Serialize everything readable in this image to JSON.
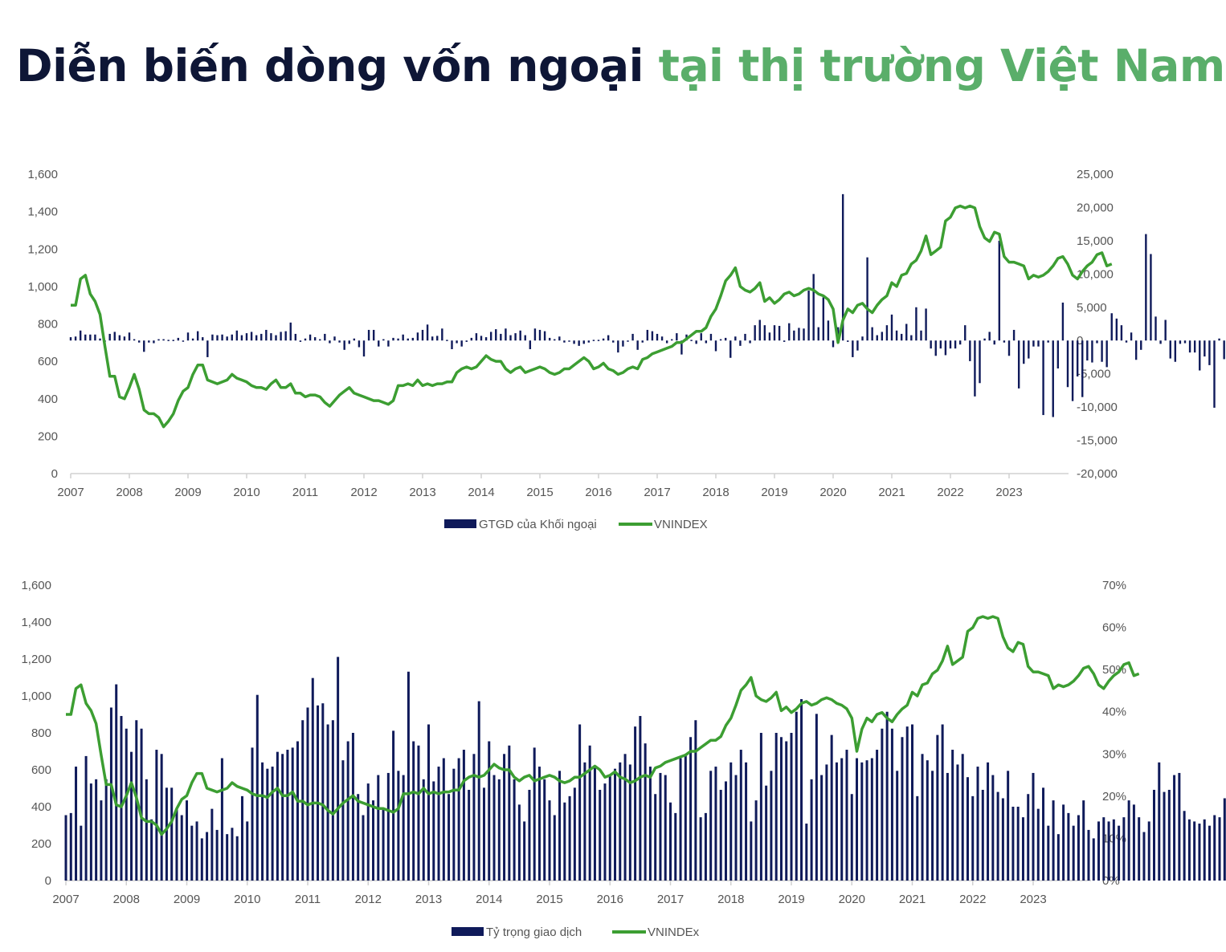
{
  "title": {
    "part1": "Diễn biến dòng vốn ngoại",
    "part2": "tại thị trường Việt Nam",
    "color_dark": "#0e1636",
    "color_green": "#5aae6a"
  },
  "colors": {
    "bar": "#0f1a5a",
    "line": "#3c9e32",
    "axis": "#d0d0d0",
    "tick_text": "#555555"
  },
  "chart_data": [
    {
      "type": "bar+line",
      "title": "",
      "x_ticks": [
        "2007",
        "2008",
        "2009",
        "2010",
        "2011",
        "2012",
        "2013",
        "2014",
        "2015",
        "2016",
        "2017",
        "2018",
        "2019",
        "2020",
        "2021",
        "2022",
        "2023"
      ],
      "left_axis": {
        "label": "VNINDEX",
        "ticks": [
          "0",
          "200",
          "400",
          "600",
          "800",
          "1,000",
          "1,200",
          "1,400",
          "1,600"
        ],
        "ylim": [
          0,
          1600
        ]
      },
      "right_axis": {
        "label": "GTGD của Khối ngoại",
        "ticks": [
          "-20,000",
          "-15,000",
          "-10,000",
          "-5,000",
          "0",
          "5,000",
          "10,000",
          "15,000",
          "20,000",
          "25,000"
        ],
        "ylim": [
          -20000,
          25000
        ]
      },
      "legend": [
        {
          "name": "GTGD của Khối ngoại",
          "type": "bar"
        },
        {
          "name": "VNINDEX",
          "type": "line"
        }
      ],
      "series": [
        {
          "name": "GTGD của Khối ngoại",
          "axis": "right",
          "type": "bar",
          "frequency": "monthly",
          "start": "2007-01",
          "values": [
            500,
            600,
            1500,
            900,
            900,
            900,
            300,
            0,
            1000,
            1300,
            800,
            600,
            1200,
            200,
            -300,
            -1700,
            -300,
            -400,
            200,
            200,
            100,
            100,
            400,
            0,
            1200,
            300,
            1400,
            500,
            -2500,
            900,
            800,
            900,
            600,
            900,
            1500,
            800,
            1100,
            1300,
            800,
            1000,
            1600,
            1100,
            800,
            1300,
            1400,
            2700,
            1000,
            -200,
            300,
            900,
            500,
            200,
            1000,
            -400,
            600,
            -300,
            -1400,
            -500,
            300,
            -1000,
            -2400,
            1600,
            1600,
            -900,
            200,
            -900,
            400,
            300,
            900,
            300,
            400,
            1200,
            1600,
            2400,
            600,
            700,
            1800,
            100,
            -1300,
            -400,
            -900,
            -200,
            400,
            1100,
            700,
            500,
            1300,
            1700,
            1000,
            1800,
            800,
            1100,
            1500,
            800,
            -1300,
            1800,
            1600,
            1400,
            400,
            200,
            600,
            -300,
            -100,
            -500,
            -800,
            -500,
            -300,
            100,
            100,
            300,
            800,
            -300,
            -1800,
            -900,
            -100,
            1000,
            -1400,
            -300,
            1600,
            1400,
            1000,
            600,
            -400,
            200,
            1100,
            -2100,
            900,
            100,
            -500,
            1100,
            -400,
            1000,
            -1600,
            200,
            400,
            -2600,
            600,
            -800,
            1000,
            -400,
            2300,
            3100,
            2300,
            1200,
            2300,
            2200,
            -200,
            2600,
            1500,
            1900,
            1800,
            7500,
            10000,
            2000,
            6500,
            3000,
            -1000,
            2000,
            22000,
            -200,
            -2500,
            -1500,
            600,
            12500,
            2000,
            800,
            1300,
            2300,
            3900,
            1500,
            1000,
            2500,
            800,
            5000,
            1500,
            4800,
            -1200,
            -2300,
            -1200,
            -2200,
            -1200,
            -1200,
            -600,
            2300,
            -3100,
            -8400,
            -6400,
            300,
            1300,
            -600,
            15000,
            -300,
            -2300,
            1600,
            -7200,
            -3500,
            -2700,
            -900,
            -900,
            -11200,
            -300,
            -11500,
            -4200,
            5700,
            -7000,
            -9100,
            -5400,
            -8500,
            -3000,
            -3300,
            -400,
            -3200,
            -4000,
            4100,
            3300,
            2300,
            -300,
            1200,
            -2900,
            -1400,
            16000,
            13000,
            3600,
            -500,
            3100,
            -2700,
            -3200,
            -500,
            -400,
            -1800,
            -1800,
            -4500,
            -2400,
            -3700,
            -10100,
            300,
            -2800,
            -11400,
            -6000,
            -15800,
            -14600
          ]
        },
        {
          "name": "VNINDEX",
          "axis": "left",
          "type": "line",
          "frequency": "monthly",
          "start": "2007-01",
          "values": [
            900,
            900,
            1040,
            1060,
            960,
            920,
            850,
            680,
            520,
            520,
            410,
            400,
            460,
            530,
            450,
            340,
            320,
            320,
            300,
            250,
            280,
            320,
            390,
            440,
            460,
            530,
            580,
            580,
            500,
            490,
            480,
            490,
            500,
            530,
            510,
            500,
            490,
            470,
            460,
            460,
            450,
            480,
            500,
            460,
            460,
            480,
            430,
            430,
            410,
            420,
            420,
            410,
            380,
            360,
            390,
            420,
            440,
            460,
            430,
            420,
            410,
            400,
            390,
            390,
            380,
            370,
            390,
            470,
            470,
            480,
            470,
            500,
            470,
            480,
            470,
            480,
            480,
            490,
            490,
            540,
            560,
            570,
            560,
            570,
            600,
            630,
            610,
            600,
            600,
            560,
            540,
            560,
            570,
            540,
            550,
            560,
            570,
            560,
            540,
            530,
            540,
            560,
            560,
            580,
            600,
            620,
            600,
            560,
            570,
            590,
            560,
            550,
            530,
            540,
            560,
            570,
            560,
            610,
            620,
            640,
            650,
            660,
            670,
            680,
            700,
            700,
            720,
            740,
            760,
            760,
            780,
            840,
            880,
            950,
            1030,
            1060,
            1100,
            1000,
            980,
            970,
            990,
            1020,
            920,
            940,
            910,
            930,
            960,
            970,
            950,
            960,
            980,
            990,
            980,
            960,
            950,
            930,
            880,
            700,
            820,
            880,
            860,
            900,
            910,
            880,
            860,
            900,
            930,
            950,
            1020,
            1000,
            1060,
            1070,
            1120,
            1140,
            1190,
            1270,
            1170,
            1190,
            1210,
            1350,
            1370,
            1420,
            1430,
            1420,
            1430,
            1420,
            1320,
            1260,
            1240,
            1290,
            1280,
            1160,
            1130,
            1130,
            1120,
            1110,
            1040,
            1060,
            1050,
            1060,
            1080,
            1110,
            1150,
            1160,
            1120,
            1060,
            1040,
            1080,
            1110,
            1130,
            1170,
            1180,
            1110,
            1120
          ]
        }
      ]
    },
    {
      "type": "bar+line",
      "title": "",
      "x_ticks": [
        "2007",
        "2008",
        "2009",
        "2010",
        "2011",
        "2012",
        "2013",
        "2014",
        "2015",
        "2016",
        "2017",
        "2018",
        "2019",
        "2020",
        "2021",
        "2022",
        "2023"
      ],
      "left_axis": {
        "label": "VNINDEx",
        "ticks": [
          "0",
          "200",
          "400",
          "600",
          "800",
          "1,000",
          "1,200",
          "1,400",
          "1,600"
        ],
        "ylim": [
          0,
          1600
        ]
      },
      "right_axis": {
        "label": "Tỷ trọng giao dịch",
        "ticks": [
          "0%",
          "10%",
          "20%",
          "30%",
          "40%",
          "50%",
          "60%",
          "70%"
        ],
        "ylim": [
          0,
          70
        ]
      },
      "legend": [
        {
          "name": "Tỷ trọng giao dịch",
          "type": "bar"
        },
        {
          "name": "VNINDEx",
          "type": "line"
        }
      ],
      "series": [
        {
          "name": "Tỷ trọng giao dịch",
          "axis": "right",
          "type": "bar",
          "frequency": "monthly",
          "start": "2007-01",
          "unit": "%",
          "values": [
            15.5,
            16,
            27,
            13,
            29.5,
            23,
            24,
            19,
            24,
            41,
            46.5,
            39,
            36,
            30.5,
            38,
            36,
            24,
            14.5,
            31,
            30,
            22,
            22,
            17,
            15.5,
            19,
            13,
            14,
            10,
            11.5,
            17,
            12,
            29,
            11,
            12.5,
            10.5,
            20,
            14,
            31.5,
            44,
            28,
            26.5,
            27,
            30.5,
            30,
            31,
            31.5,
            33,
            38,
            41,
            48,
            41.5,
            42,
            37,
            38,
            53,
            28.5,
            33,
            35,
            20.5,
            15.5,
            23,
            19,
            25,
            17,
            25.5,
            35.5,
            26,
            25,
            49.5,
            33,
            32,
            24,
            37,
            23.5,
            27,
            29,
            20.5,
            26.5,
            29,
            31,
            21.5,
            30,
            42.5,
            22,
            33,
            25,
            24,
            30,
            32,
            24,
            18,
            14,
            21.5,
            31.5,
            27,
            24,
            19,
            15.5,
            26,
            18.5,
            20,
            22,
            37,
            28,
            32,
            27,
            21.5,
            23,
            25,
            26.5,
            28,
            30,
            27.5,
            36.5,
            39,
            32.5,
            27,
            20.5,
            25.5,
            25,
            18.5,
            16,
            29,
            30,
            34,
            38,
            15,
            16,
            26,
            27,
            21.5,
            23.5,
            28,
            25,
            31,
            28,
            14,
            19,
            35,
            22.5,
            26,
            35,
            34,
            33,
            35,
            40,
            43,
            13.5,
            24,
            39.5,
            25,
            27.5,
            34.5,
            28,
            29,
            31,
            20.5,
            29,
            28,
            28.5,
            29,
            31,
            36,
            40,
            36,
            26,
            34,
            36.5,
            37,
            20,
            30,
            28.5,
            26,
            34.5,
            37,
            25.5,
            31,
            27.5,
            30,
            24.5,
            20,
            27,
            21.5,
            28,
            25,
            21,
            19.5,
            26,
            17.5,
            17.5,
            15,
            20.5,
            25.5,
            17,
            22,
            13,
            19,
            11,
            18,
            16,
            13,
            15.5,
            19,
            12,
            10,
            14,
            15,
            14,
            14.5,
            13,
            15,
            19,
            18,
            15,
            11.5,
            14,
            21.5,
            28,
            21,
            21.5,
            25,
            25.5,
            16.5,
            14.5,
            14,
            13.5,
            14.5,
            13,
            15.5,
            15,
            19.5,
            14.5,
            18,
            20,
            23,
            17.5,
            18.5
          ]
        },
        {
          "name": "VNINDEx",
          "axis": "left",
          "type": "line",
          "frequency": "monthly",
          "start": "2007-01",
          "values": [
            900,
            900,
            1040,
            1060,
            960,
            920,
            850,
            680,
            520,
            520,
            410,
            400,
            460,
            530,
            450,
            340,
            320,
            320,
            300,
            250,
            280,
            320,
            390,
            440,
            460,
            530,
            580,
            580,
            500,
            490,
            480,
            490,
            500,
            530,
            510,
            500,
            490,
            470,
            460,
            460,
            450,
            480,
            500,
            460,
            460,
            480,
            430,
            430,
            410,
            420,
            420,
            410,
            380,
            360,
            390,
            420,
            440,
            460,
            430,
            420,
            410,
            400,
            390,
            390,
            380,
            370,
            390,
            470,
            470,
            480,
            470,
            500,
            470,
            480,
            470,
            480,
            480,
            490,
            490,
            540,
            560,
            570,
            560,
            570,
            600,
            630,
            610,
            600,
            600,
            560,
            540,
            560,
            570,
            540,
            550,
            560,
            570,
            560,
            540,
            530,
            540,
            560,
            560,
            580,
            600,
            620,
            600,
            560,
            570,
            590,
            560,
            550,
            530,
            540,
            560,
            570,
            560,
            610,
            620,
            640,
            650,
            660,
            670,
            680,
            700,
            700,
            720,
            740,
            760,
            760,
            780,
            840,
            880,
            950,
            1030,
            1060,
            1100,
            1000,
            980,
            970,
            990,
            1020,
            920,
            940,
            910,
            930,
            960,
            970,
            950,
            960,
            980,
            990,
            980,
            960,
            950,
            930,
            880,
            700,
            820,
            880,
            860,
            900,
            910,
            880,
            860,
            900,
            930,
            950,
            1020,
            1000,
            1060,
            1070,
            1120,
            1140,
            1190,
            1270,
            1170,
            1190,
            1210,
            1350,
            1370,
            1420,
            1430,
            1420,
            1430,
            1420,
            1320,
            1260,
            1240,
            1290,
            1280,
            1160,
            1130,
            1130,
            1120,
            1110,
            1040,
            1060,
            1050,
            1060,
            1080,
            1110,
            1150,
            1160,
            1120,
            1060,
            1040,
            1080,
            1110,
            1130,
            1170,
            1180,
            1110,
            1120
          ]
        }
      ]
    }
  ]
}
